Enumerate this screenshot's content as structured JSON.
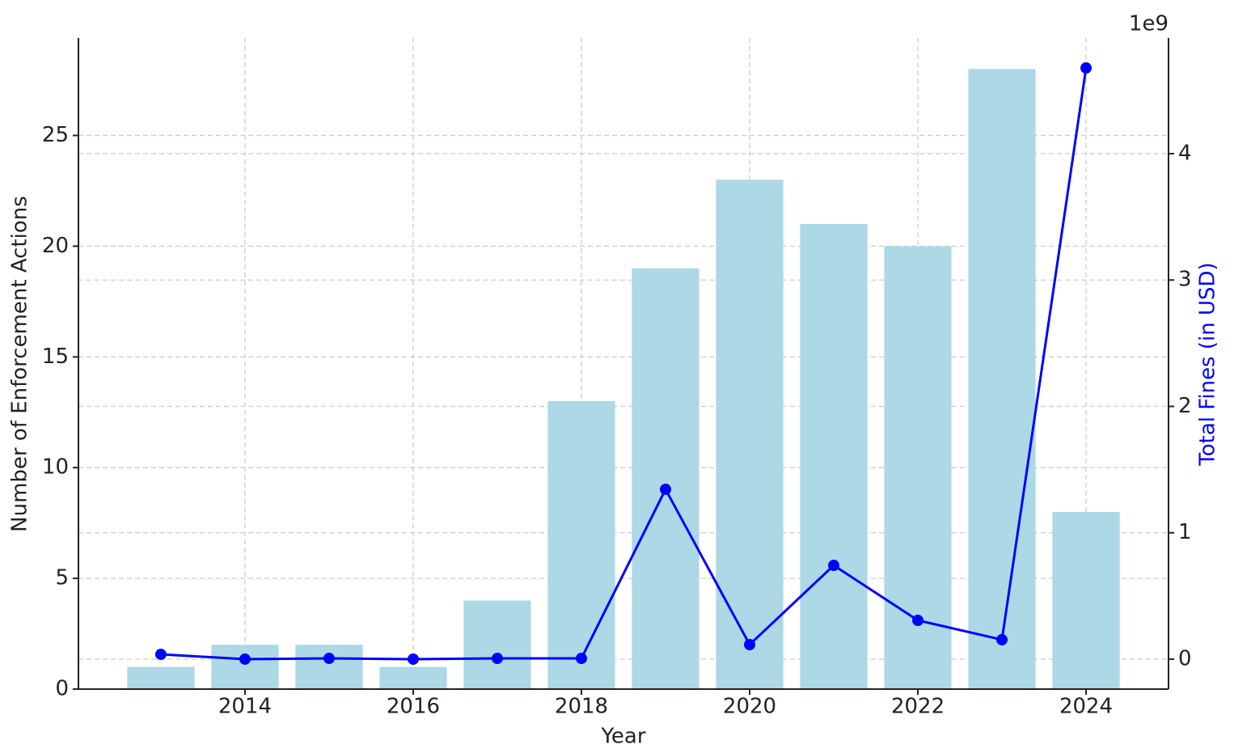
{
  "chart_data": {
    "type": "bar",
    "x": [
      2013,
      2014,
      2015,
      2016,
      2017,
      2018,
      2019,
      2020,
      2021,
      2022,
      2023,
      2024
    ],
    "xlabel": "Year",
    "ylabel": "Number of Enforcement Actions",
    "y2label": "Total Fines (in USD)",
    "y2_offset_label": "1e9",
    "series": [
      {
        "type": "bar",
        "color": "#add8e6",
        "values": [
          1,
          2,
          2,
          1,
          4,
          13,
          19,
          23,
          21,
          20,
          28,
          8
        ]
      },
      {
        "type": "line",
        "axis": "y2",
        "color": "#0000ff",
        "values": [
          38000000,
          0,
          6000000,
          0,
          6000000,
          6000000,
          1344000000,
          115000000,
          742000000,
          307000000,
          154000000,
          4678000000
        ]
      }
    ],
    "xlim": [
      2012.02,
      2024.98
    ],
    "xticks": [
      2014,
      2016,
      2018,
      2020,
      2022,
      2024
    ],
    "ylim": [
      0,
      29.4
    ],
    "yticks": [
      0,
      5,
      10,
      15,
      20,
      25
    ],
    "y2lim": [
      -237000000,
      4915000000
    ],
    "y2ticks": [
      {
        "value": 0,
        "label": "0"
      },
      {
        "value": 1000000000,
        "label": "1"
      },
      {
        "value": 2000000000,
        "label": "2"
      },
      {
        "value": 3000000000,
        "label": "3"
      },
      {
        "value": 4000000000,
        "label": "4"
      }
    ],
    "grid": true
  }
}
